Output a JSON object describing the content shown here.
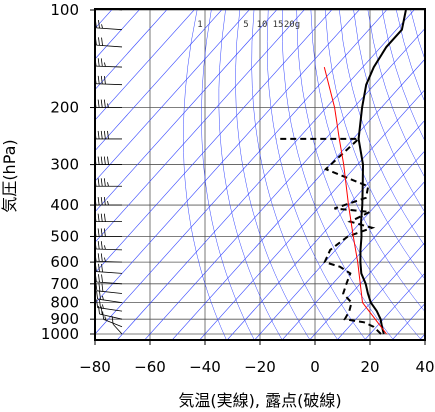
{
  "chart_data": {
    "type": "line",
    "chart_kind": "skew-T log-P aerological diagram",
    "xlabel": "気温(実線), 露点(破線)",
    "ylabel": "気圧(hPa)",
    "x_ticks": [
      -80,
      -60,
      -40,
      -20,
      0,
      20,
      40
    ],
    "y_ticks": [
      100,
      200,
      300,
      400,
      500,
      600,
      700,
      800,
      900,
      1000
    ],
    "xlim": [
      -80,
      40
    ],
    "ylim_pressure": [
      1050,
      100
    ],
    "y_scale": "log",
    "grid": true,
    "mixing_ratio_labels": [
      "1",
      "5",
      "10",
      "15",
      "20g"
    ],
    "series": [
      {
        "role": "temperature",
        "style": "solid",
        "color": "#000000",
        "points": [
          [
            25,
            1000
          ],
          [
            22,
            950
          ],
          [
            19,
            900
          ],
          [
            15,
            850
          ],
          [
            10,
            800
          ],
          [
            6,
            750
          ],
          [
            2,
            700
          ],
          [
            -3,
            650
          ],
          [
            -7,
            600
          ],
          [
            -11,
            550
          ],
          [
            -15,
            500
          ],
          [
            -20,
            450
          ],
          [
            -25,
            400
          ],
          [
            -31,
            350
          ],
          [
            -38,
            300
          ],
          [
            -48,
            250
          ],
          [
            -57,
            200
          ],
          [
            -63,
            170
          ],
          [
            -66,
            150
          ],
          [
            -68,
            130
          ],
          [
            -68,
            115
          ],
          [
            -73,
            100
          ]
        ]
      },
      {
        "role": "dewpoint",
        "style": "dashed",
        "color": "#000000",
        "points": [
          [
            24,
            1000
          ],
          [
            19,
            950
          ],
          [
            14,
            920
          ],
          [
            6,
            900
          ],
          [
            5,
            850
          ],
          [
            3,
            800
          ],
          [
            -3,
            750
          ],
          [
            -5,
            700
          ],
          [
            -7,
            650
          ],
          [
            -13,
            620
          ],
          [
            -20,
            600
          ],
          [
            -22,
            550
          ],
          [
            -20,
            500
          ],
          [
            -14,
            470
          ],
          [
            -24,
            450
          ],
          [
            -20,
            420
          ],
          [
            -34,
            410
          ],
          [
            -26,
            380
          ],
          [
            -29,
            350
          ],
          [
            -50,
            310
          ],
          [
            -48,
            250
          ],
          [
            -78,
            250
          ]
        ]
      },
      {
        "role": "reference-curve",
        "style": "solid",
        "color": "#ff0000",
        "points": [
          [
            26,
            1000
          ],
          [
            7,
            800
          ],
          [
            -8,
            600
          ],
          [
            -18,
            500
          ],
          [
            -30,
            400
          ],
          [
            -45,
            300
          ],
          [
            -55,
            250
          ],
          [
            -67,
            200
          ],
          [
            -84,
            150
          ]
        ]
      }
    ],
    "wind_barbs": [
      {
        "p": 1000,
        "dir": 200,
        "spd": 10
      },
      {
        "p": 950,
        "dir": 225,
        "spd": 15
      },
      {
        "p": 900,
        "dir": 240,
        "spd": 20
      },
      {
        "p": 850,
        "dir": 250,
        "spd": 25
      },
      {
        "p": 800,
        "dir": 250,
        "spd": 25
      },
      {
        "p": 750,
        "dir": 255,
        "spd": 30
      },
      {
        "p": 700,
        "dir": 260,
        "spd": 30
      },
      {
        "p": 650,
        "dir": 260,
        "spd": 30
      },
      {
        "p": 600,
        "dir": 265,
        "spd": 35
      },
      {
        "p": 550,
        "dir": 265,
        "spd": 35
      },
      {
        "p": 500,
        "dir": 270,
        "spd": 40
      },
      {
        "p": 450,
        "dir": 270,
        "spd": 40
      },
      {
        "p": 400,
        "dir": 270,
        "spd": 45
      },
      {
        "p": 350,
        "dir": 270,
        "spd": 45
      },
      {
        "p": 300,
        "dir": 270,
        "spd": 50
      },
      {
        "p": 250,
        "dir": 270,
        "spd": 50
      },
      {
        "p": 200,
        "dir": 270,
        "spd": 45
      },
      {
        "p": 170,
        "dir": 265,
        "spd": 40
      },
      {
        "p": 150,
        "dir": 265,
        "spd": 35
      },
      {
        "p": 130,
        "dir": 260,
        "spd": 30
      },
      {
        "p": 115,
        "dir": 260,
        "spd": 25
      },
      {
        "p": 100,
        "dir": 255,
        "spd": 20
      }
    ]
  }
}
